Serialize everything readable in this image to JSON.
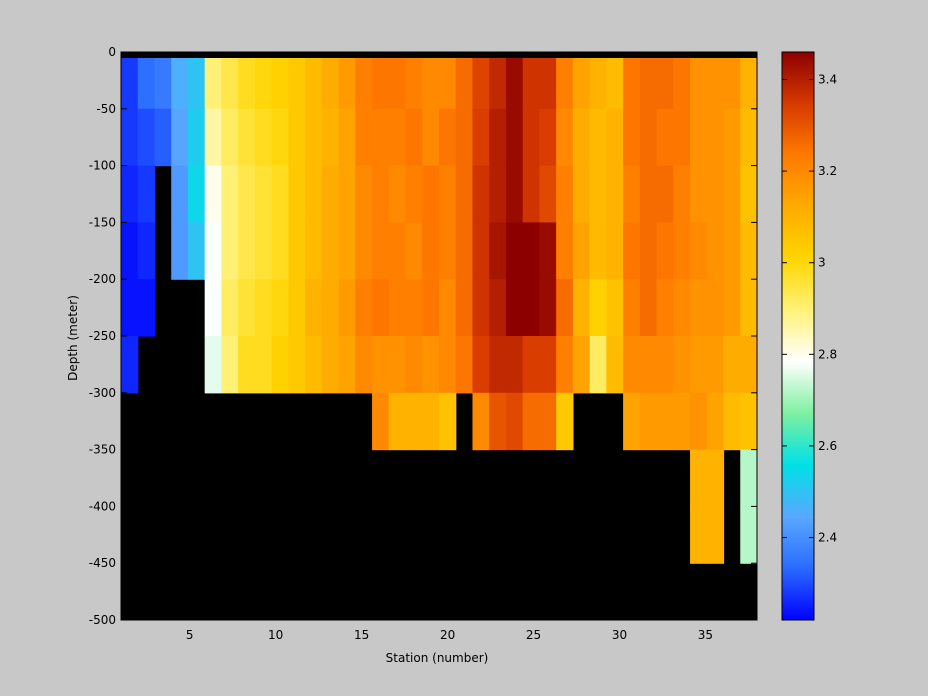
{
  "chart_data": {
    "type": "heatmap",
    "title": "",
    "xlabel": "Station (number)",
    "ylabel": "Depth (meter)",
    "xlim": [
      1,
      38
    ],
    "ylim": [
      -500,
      0
    ],
    "x_ticks": [
      5,
      10,
      15,
      20,
      25,
      30,
      35
    ],
    "y_ticks": [
      0,
      -50,
      -100,
      -150,
      -200,
      -250,
      -300,
      -350,
      -400,
      -450,
      -500
    ],
    "colorbar": {
      "range": [
        2.22,
        3.46
      ],
      "ticks": [
        2.4,
        2.6,
        2.8,
        3,
        3.2,
        3.4
      ],
      "colormap": "jet-like",
      "stops": [
        "#0000ff",
        "#2a6bff",
        "#5aa8ff",
        "#00e0e6",
        "#7ef0a0",
        "#ffffff",
        "#fff27a",
        "#ffd500",
        "#ffab00",
        "#ff7a00",
        "#d63a00",
        "#8c0000"
      ]
    },
    "mask_color": "#000000",
    "stations": [
      1,
      2,
      3,
      4,
      5,
      6,
      7,
      8,
      9,
      10,
      11,
      12,
      13,
      14,
      15,
      16,
      17,
      18,
      19,
      20,
      21,
      22,
      23,
      24,
      25,
      26,
      27,
      28,
      29,
      30,
      31,
      32,
      33,
      34,
      35,
      36,
      37,
      38
    ],
    "depth_rows": [
      0,
      -50,
      -100,
      -150,
      -200,
      -250,
      -300,
      -350,
      -400,
      -450
    ],
    "values": [
      [
        2.28,
        2.34,
        2.36,
        2.46,
        2.5,
        2.9,
        2.94,
        2.98,
        3.0,
        3.02,
        3.04,
        3.08,
        3.12,
        3.16,
        3.22,
        3.24,
        3.24,
        3.22,
        3.2,
        3.2,
        3.26,
        3.33,
        3.38,
        3.44,
        3.36,
        3.36,
        3.22,
        3.14,
        3.1,
        3.08,
        3.24,
        3.26,
        3.26,
        3.24,
        3.18,
        3.18,
        3.18,
        3.1
      ],
      [
        2.28,
        2.3,
        2.32,
        2.44,
        2.52,
        2.86,
        2.92,
        2.96,
        2.98,
        3.0,
        3.04,
        3.08,
        3.1,
        3.14,
        3.22,
        3.22,
        3.22,
        3.24,
        3.2,
        3.24,
        3.26,
        3.34,
        3.4,
        3.44,
        3.36,
        3.34,
        3.2,
        3.12,
        3.08,
        3.1,
        3.24,
        3.26,
        3.24,
        3.24,
        3.18,
        3.18,
        3.16,
        3.08
      ],
      [
        2.26,
        2.28,
        null,
        2.42,
        2.54,
        2.8,
        2.9,
        2.94,
        2.96,
        2.98,
        3.04,
        3.08,
        3.12,
        3.14,
        3.2,
        3.22,
        3.2,
        3.22,
        3.24,
        3.22,
        3.26,
        3.36,
        3.4,
        3.44,
        3.36,
        3.32,
        3.22,
        3.12,
        3.08,
        3.1,
        3.22,
        3.26,
        3.26,
        3.22,
        3.18,
        3.18,
        3.16,
        3.06
      ],
      [
        2.24,
        2.26,
        null,
        2.42,
        2.5,
        2.78,
        2.9,
        2.94,
        2.96,
        2.98,
        3.04,
        3.08,
        3.12,
        3.14,
        3.2,
        3.22,
        3.22,
        3.2,
        3.24,
        3.22,
        3.26,
        3.36,
        3.42,
        3.46,
        3.46,
        3.44,
        3.22,
        3.14,
        3.08,
        3.1,
        3.24,
        3.26,
        3.24,
        3.22,
        3.2,
        3.18,
        3.16,
        3.08
      ],
      [
        2.24,
        2.24,
        null,
        null,
        null,
        2.78,
        2.92,
        2.96,
        2.98,
        3.0,
        3.04,
        3.1,
        3.12,
        3.16,
        3.22,
        3.24,
        3.22,
        3.22,
        3.24,
        3.2,
        3.26,
        3.36,
        3.4,
        3.46,
        3.46,
        3.44,
        3.26,
        3.1,
        3.02,
        3.06,
        3.22,
        3.26,
        3.22,
        3.2,
        3.18,
        3.18,
        3.16,
        3.08
      ],
      [
        2.26,
        null,
        null,
        null,
        null,
        2.76,
        2.9,
        2.98,
        2.98,
        3.02,
        3.04,
        3.08,
        3.12,
        3.14,
        3.2,
        3.18,
        3.18,
        3.2,
        3.18,
        3.2,
        3.24,
        3.34,
        3.38,
        3.38,
        3.34,
        3.34,
        3.22,
        3.14,
        2.92,
        3.08,
        3.2,
        3.2,
        3.2,
        3.18,
        3.16,
        3.16,
        3.12,
        3.12
      ],
      [
        null,
        null,
        null,
        null,
        null,
        null,
        null,
        null,
        null,
        null,
        null,
        null,
        null,
        null,
        null,
        3.2,
        3.1,
        3.1,
        3.1,
        3.06,
        null,
        3.2,
        3.3,
        3.32,
        3.26,
        3.26,
        3.04,
        null,
        null,
        null,
        3.14,
        3.16,
        3.16,
        3.16,
        3.18,
        3.14,
        3.08,
        3.06
      ],
      [
        null,
        null,
        null,
        null,
        null,
        null,
        null,
        null,
        null,
        null,
        null,
        null,
        null,
        null,
        null,
        null,
        null,
        null,
        null,
        null,
        null,
        null,
        null,
        null,
        null,
        null,
        null,
        null,
        null,
        null,
        null,
        null,
        null,
        null,
        3.1,
        3.1,
        null,
        2.72
      ],
      [
        null,
        null,
        null,
        null,
        null,
        null,
        null,
        null,
        null,
        null,
        null,
        null,
        null,
        null,
        null,
        null,
        null,
        null,
        null,
        null,
        null,
        null,
        null,
        null,
        null,
        null,
        null,
        null,
        null,
        null,
        null,
        null,
        null,
        null,
        3.1,
        3.1,
        null,
        2.72
      ],
      [
        null,
        null,
        null,
        null,
        null,
        null,
        null,
        null,
        null,
        null,
        null,
        null,
        null,
        null,
        null,
        null,
        null,
        null,
        null,
        null,
        null,
        null,
        null,
        null,
        null,
        null,
        null,
        null,
        null,
        null,
        null,
        null,
        null,
        null,
        null,
        null,
        null,
        null
      ]
    ]
  }
}
